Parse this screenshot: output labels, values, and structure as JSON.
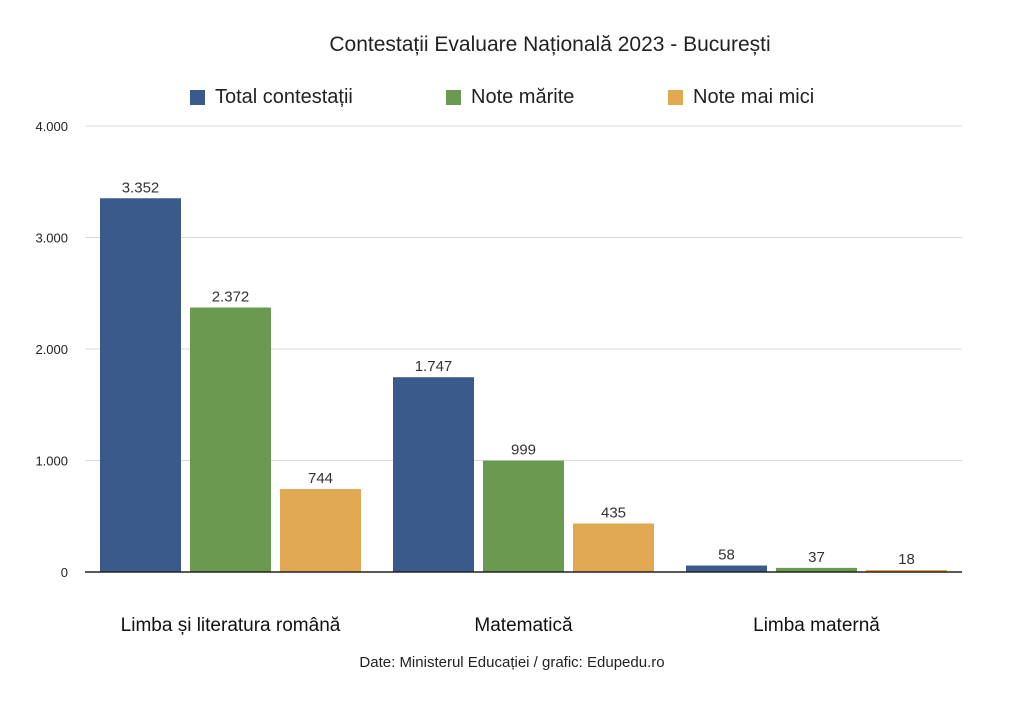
{
  "chart_data": {
    "type": "bar",
    "title": "Contestații Evaluare Națională 2023 - București",
    "categories": [
      "Limba și literatura română",
      "Matematică",
      "Limba maternă"
    ],
    "series": [
      {
        "name": "Total contestații",
        "values": [
          3352,
          1747,
          58
        ],
        "labels": [
          "3.352",
          "1.747",
          "58"
        ],
        "color": "#3a5a8c"
      },
      {
        "name": "Note mărite",
        "values": [
          2372,
          999,
          37
        ],
        "labels": [
          "2.372",
          "999",
          "37"
        ],
        "color": "#6a9a50"
      },
      {
        "name": "Note mai mici",
        "values": [
          744,
          435,
          18
        ],
        "labels": [
          "744",
          "435",
          "18"
        ],
        "color": "#e0a850"
      }
    ],
    "ylim": [
      0,
      4000
    ],
    "yticks": [
      0,
      1000,
      2000,
      3000,
      4000
    ],
    "ytick_labels": [
      "0",
      "1.000",
      "2.000",
      "3.000",
      "4.000"
    ],
    "xlabel": "",
    "ylabel": "",
    "legend_position": "top",
    "grid": true,
    "source": "Date: Ministerul Educației / grafic: Edupedu.ro"
  }
}
